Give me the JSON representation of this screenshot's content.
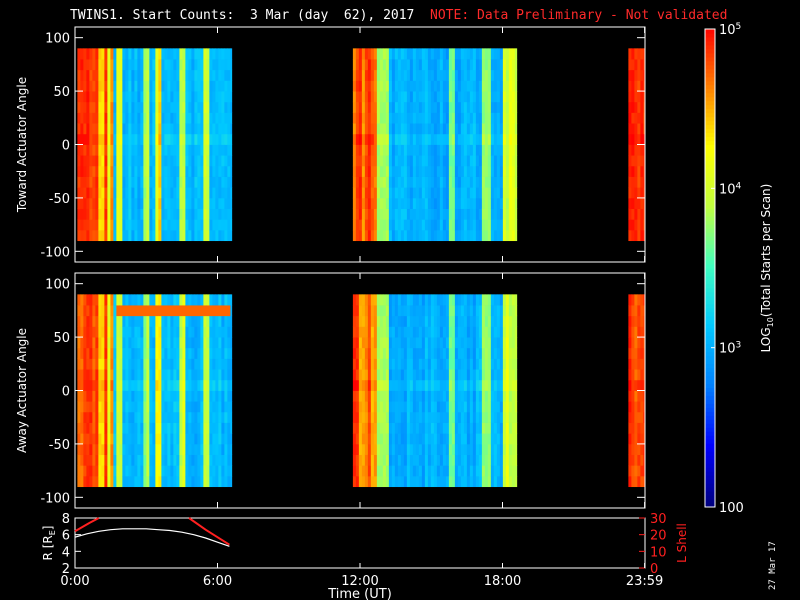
{
  "title": {
    "main": "TWINS1. Start Counts:  3 Mar (day  62), 2017",
    "note": "NOTE: Data Preliminary - Not validated"
  },
  "date_stamp": "27 Mar 17",
  "colors": {
    "background": "#000000",
    "axes": "#ffffff",
    "note": "#ff2a2a",
    "lshell": "#ff2020",
    "radius_curve": "#ffffff"
  },
  "chart_data": [
    {
      "type": "heatmap",
      "panel": "toward",
      "ylabel": "Toward Actuator Angle",
      "ylim": [
        -110,
        110
      ],
      "yticks": [
        -100,
        -50,
        0,
        50,
        100
      ],
      "angle_range": [
        -90,
        90
      ],
      "x_unit": "hours UT",
      "data_segments_hours": [
        [
          0.1,
          6.6
        ],
        [
          11.7,
          18.6
        ],
        [
          23.3,
          24.0
        ]
      ]
    },
    {
      "type": "heatmap",
      "panel": "away",
      "ylabel": "Away Actuator Angle",
      "ylim": [
        -110,
        110
      ],
      "yticks": [
        -100,
        -50,
        0,
        50,
        100
      ],
      "angle_range": [
        -90,
        90
      ],
      "x_unit": "hours UT",
      "data_segments_hours": [
        [
          0.1,
          6.6
        ],
        [
          11.7,
          18.6
        ],
        [
          23.3,
          24.0
        ]
      ]
    },
    {
      "type": "line",
      "panel": "ephemeris",
      "ylabel_left": "R [R",
      "ylabel_left_sub": "E",
      "ylabel_left_close": "]",
      "ylabel_right": "L Shell",
      "y_left_ticks": [
        "2",
        "4",
        "6",
        "8"
      ],
      "y_left_range": [
        2,
        8
      ],
      "y_right_ticks": [
        "0",
        "10",
        "20",
        "30"
      ],
      "y_right_range": [
        0,
        30
      ],
      "series": [
        {
          "axis": "left",
          "x": [
            0.0,
            0.5,
            1.0,
            1.5,
            2.0,
            2.5,
            3.0,
            3.5,
            4.0,
            4.5,
            5.0,
            5.5,
            6.0,
            6.5
          ],
          "y": [
            5.7,
            6.1,
            6.4,
            6.6,
            6.7,
            6.7,
            6.7,
            6.6,
            6.5,
            6.3,
            6.0,
            5.6,
            5.1,
            4.6
          ]
        },
        {
          "axis": "right",
          "segments": [
            {
              "x": [
                0.0,
                0.6,
                1.0
              ],
              "y": [
                22,
                27,
                30
              ]
            },
            {
              "x": [
                4.8,
                5.5,
                6.5
              ],
              "y": [
                30,
                23,
                14
              ]
            }
          ]
        }
      ],
      "xlabel": "Time (UT)",
      "xticks": [
        "0:00",
        "6:00",
        "12:00",
        "18:00",
        "23:59"
      ],
      "xtick_hours": [
        0,
        6,
        12,
        18,
        23.983
      ]
    }
  ],
  "colorbar": {
    "label_pre": "LOG",
    "label_sub": "10",
    "label_post": "(Total Starts per Scan)",
    "ticks": [
      {
        "base": "10",
        "exp": "5",
        "value": 100000
      },
      {
        "base": "10",
        "exp": "4",
        "value": 10000
      },
      {
        "base": "10",
        "exp": "3",
        "value": 1000
      },
      {
        "base": "100",
        "exp": "",
        "value": 100
      }
    ],
    "range": [
      100,
      100000
    ],
    "scale": "log",
    "palette": [
      "#000080",
      "#0000ff",
      "#0080ff",
      "#00c8ff",
      "#40ffc0",
      "#c0ff40",
      "#ffff00",
      "#ff8000",
      "#ff0000"
    ]
  }
}
